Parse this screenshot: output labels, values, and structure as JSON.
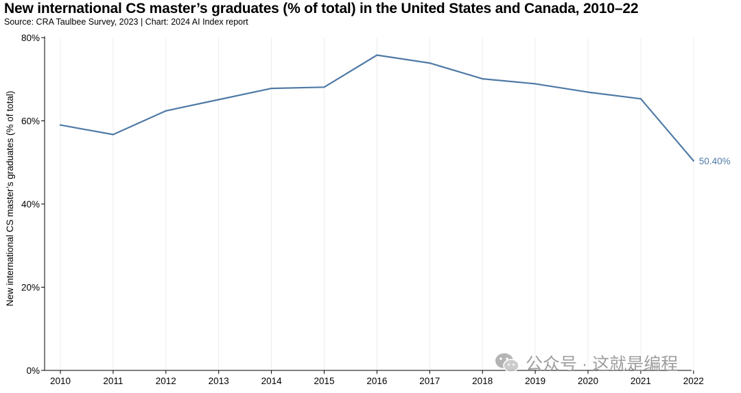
{
  "title": "New international CS master’s graduates (% of total) in the United States and Canada, 2010–22",
  "subtitle": "Source: CRA Taulbee Survey, 2023 | Chart: 2024 AI Index report",
  "watermark": "公众号 · 这就是编程",
  "colors": {
    "line": "#4f7aa6",
    "grid": "#ececec",
    "axis": "#000000"
  },
  "chart_data": {
    "type": "line",
    "title": "New international CS master’s graduates (% of total) in the United States and Canada, 2010–22",
    "xlabel": "",
    "ylabel": "New international CS master’s graduates (% of total)",
    "ylim": [
      0,
      80
    ],
    "yticks": [
      0,
      20,
      40,
      60,
      80
    ],
    "ytick_labels": [
      "0%",
      "20%",
      "40%",
      "60%",
      "80%"
    ],
    "categories": [
      "2010",
      "2011",
      "2012",
      "2013",
      "2014",
      "2015",
      "2016",
      "2017",
      "2018",
      "2019",
      "2020",
      "2021",
      "2022"
    ],
    "series": [
      {
        "name": "New international CS master’s graduates (% of total)",
        "values": [
          59.0,
          56.7,
          62.4,
          65.1,
          67.8,
          68.1,
          75.8,
          73.9,
          70.1,
          68.9,
          66.9,
          65.3,
          50.4
        ]
      }
    ],
    "end_label": "50.40%",
    "grid": true
  }
}
